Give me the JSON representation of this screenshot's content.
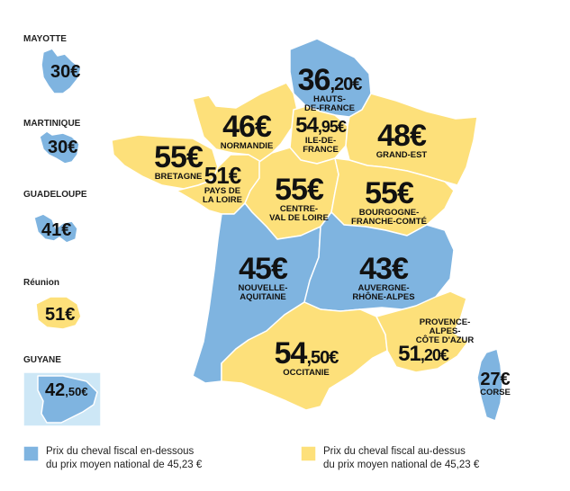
{
  "colors": {
    "below": "#7fb4e0",
    "above": "#fde07a",
    "light_blue": "#cde7f6",
    "border": "#ffffff"
  },
  "overseas": [
    {
      "title": "MAYOTTE",
      "price": "30€",
      "color": "below"
    },
    {
      "title": "MARTINIQUE",
      "price": "30€",
      "color": "below"
    },
    {
      "title": "GUADELOUPE",
      "price": "41€",
      "color": "below"
    },
    {
      "title": "Réunion",
      "price": "51€",
      "color": "above"
    },
    {
      "title": "GUYANE",
      "price_int": "42",
      "price_dec": ",50€",
      "color": "below"
    }
  ],
  "regions": [
    {
      "id": "hauts-de-france",
      "price_int": "36",
      "price_dec": ",20€",
      "name": "HAUTS-\nDE-FRANCE",
      "color": "below"
    },
    {
      "id": "normandie",
      "price_int": "46€",
      "price_dec": "",
      "name": "NORMANDIE",
      "color": "above"
    },
    {
      "id": "ile-de-france",
      "price_int": "54",
      "price_dec": ",95€",
      "name": "ILE-DE-\nFRANCE",
      "color": "above"
    },
    {
      "id": "grand-est",
      "price_int": "48€",
      "price_dec": "",
      "name": "GRAND-EST",
      "color": "above"
    },
    {
      "id": "bretagne",
      "price_int": "55€",
      "price_dec": "",
      "name": "BRETAGNE",
      "color": "above"
    },
    {
      "id": "pays-de-la-loire",
      "price_int": "51€",
      "price_dec": "",
      "name": "PAYS DE\nLA LOIRE",
      "color": "above"
    },
    {
      "id": "centre-val-de-loire",
      "price_int": "55€",
      "price_dec": "",
      "name": "CENTRE-\nVAL DE LOIRE",
      "color": "above"
    },
    {
      "id": "bourgogne-franche-comte",
      "price_int": "55€",
      "price_dec": "",
      "name": "BOURGOGNE-\nFRANCHE-COMTÉ",
      "color": "above"
    },
    {
      "id": "nouvelle-aquitaine",
      "price_int": "45€",
      "price_dec": "",
      "name": "NOUVELLE-\nAQUITAINE",
      "color": "below"
    },
    {
      "id": "auvergne-rhone-alpes",
      "price_int": "43€",
      "price_dec": "",
      "name": "AUVERGNE-\nRHÔNE-ALPES",
      "color": "below"
    },
    {
      "id": "occitanie",
      "price_int": "54",
      "price_dec": ",50€",
      "name": "OCCITANIE",
      "color": "above"
    },
    {
      "id": "provence-alpes-cote-d-azur",
      "price_int": "51",
      "price_dec": ",20€",
      "name": "PROVENCE-\nALPES-\nCÔTE D'AZUR",
      "color": "above"
    },
    {
      "id": "corse",
      "price_int": "27€",
      "price_dec": "",
      "name": "CORSE",
      "color": "below"
    }
  ],
  "legend": [
    {
      "color": "below",
      "text": "Prix du cheval fiscal en-dessous\ndu prix moyen national de 45,23 €"
    },
    {
      "color": "above",
      "text": "Prix du cheval fiscal au-dessus\ndu prix moyen national de 45,23 €"
    }
  ]
}
